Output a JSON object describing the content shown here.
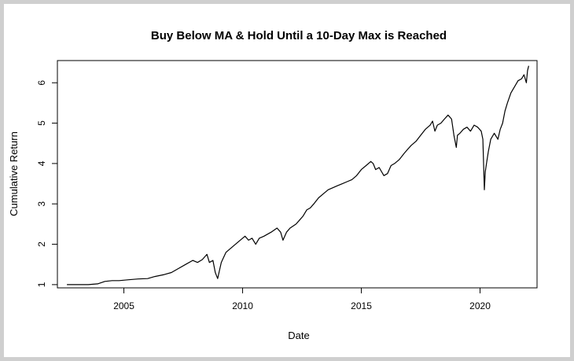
{
  "chart_data": {
    "type": "line",
    "title": "Buy Below MA & Hold Until a 10-Day Max is Reached",
    "xlabel": "Date",
    "ylabel": "Cumulative Return",
    "xlim": [
      2002.2,
      2022.4
    ],
    "ylim": [
      0.92,
      6.55
    ],
    "x_ticks": [
      2005,
      2010,
      2015,
      2020
    ],
    "x_tick_labels": [
      "2005",
      "2010",
      "2015",
      "2020"
    ],
    "y_ticks": [
      1,
      2,
      3,
      4,
      5,
      6
    ],
    "y_tick_labels": [
      "1",
      "2",
      "3",
      "4",
      "5",
      "6"
    ],
    "grid": false,
    "series": [
      {
        "color": "#000000",
        "x": [
          2002.6,
          2003.0,
          2003.5,
          2003.9,
          2004.2,
          2004.5,
          2004.8,
          2005.2,
          2005.6,
          2006.0,
          2006.3,
          2006.7,
          2007.0,
          2007.3,
          2007.6,
          2007.9,
          2008.1,
          2008.3,
          2008.5,
          2008.6,
          2008.75,
          2008.85,
          2008.95,
          2009.1,
          2009.3,
          2009.6,
          2009.9,
          2010.1,
          2010.25,
          2010.4,
          2010.55,
          2010.7,
          2010.9,
          2011.2,
          2011.45,
          2011.6,
          2011.7,
          2011.85,
          2012.0,
          2012.25,
          2012.4,
          2012.55,
          2012.7,
          2012.85,
          2013.0,
          2013.2,
          2013.4,
          2013.6,
          2013.8,
          2014.0,
          2014.2,
          2014.4,
          2014.6,
          2014.8,
          2015.0,
          2015.2,
          2015.4,
          2015.5,
          2015.6,
          2015.75,
          2015.95,
          2016.1,
          2016.25,
          2016.4,
          2016.6,
          2016.8,
          2016.95,
          2017.1,
          2017.3,
          2017.5,
          2017.7,
          2017.9,
          2018.0,
          2018.1,
          2018.2,
          2018.35,
          2018.5,
          2018.65,
          2018.8,
          2018.9,
          2019.0,
          2019.05,
          2019.15,
          2019.3,
          2019.45,
          2019.6,
          2019.75,
          2019.9,
          2020.05,
          2020.12,
          2020.18,
          2020.22,
          2020.27,
          2020.35,
          2020.45,
          2020.6,
          2020.75,
          2020.85,
          2020.95,
          2021.05,
          2021.15,
          2021.3,
          2021.45,
          2021.6,
          2021.75,
          2021.85,
          2021.95,
          2022.0,
          2022.05
        ],
        "y": [
          1.0,
          1.0,
          1.0,
          1.02,
          1.08,
          1.1,
          1.1,
          1.12,
          1.14,
          1.15,
          1.2,
          1.25,
          1.3,
          1.4,
          1.5,
          1.6,
          1.55,
          1.62,
          1.75,
          1.55,
          1.6,
          1.3,
          1.15,
          1.55,
          1.8,
          1.95,
          2.1,
          2.2,
          2.1,
          2.15,
          2.0,
          2.15,
          2.2,
          2.3,
          2.4,
          2.3,
          2.1,
          2.3,
          2.4,
          2.5,
          2.6,
          2.7,
          2.85,
          2.9,
          3.0,
          3.15,
          3.25,
          3.35,
          3.4,
          3.45,
          3.5,
          3.55,
          3.6,
          3.7,
          3.85,
          3.95,
          4.05,
          4.0,
          3.85,
          3.9,
          3.7,
          3.75,
          3.95,
          4.0,
          4.1,
          4.25,
          4.35,
          4.45,
          4.55,
          4.7,
          4.85,
          4.95,
          5.05,
          4.8,
          4.95,
          5.0,
          5.1,
          5.2,
          5.1,
          4.7,
          4.4,
          4.7,
          4.75,
          4.85,
          4.9,
          4.8,
          4.95,
          4.9,
          4.8,
          4.6,
          3.35,
          3.8,
          4.0,
          4.3,
          4.6,
          4.75,
          4.6,
          4.85,
          5.0,
          5.3,
          5.5,
          5.75,
          5.9,
          6.05,
          6.1,
          6.2,
          6.0,
          6.3,
          6.42
        ]
      }
    ]
  }
}
